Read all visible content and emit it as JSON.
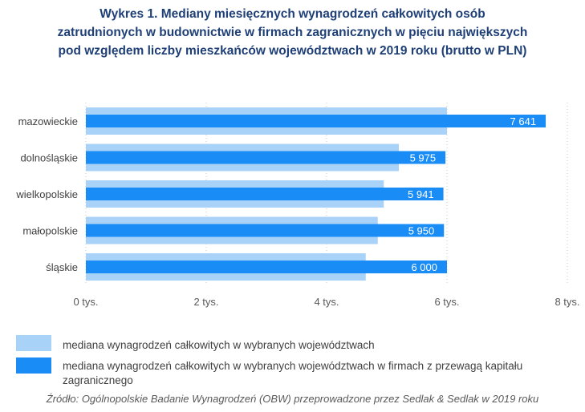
{
  "title_lines": [
    "Wykres 1. Mediany miesięcznych wynagrodzeń całkowitych osób",
    "zatrudnionych w budownictwie w firmach zagranicznych w pięciu największych",
    "pod względem liczby mieszkańców województwach w 2019 roku (brutto w PLN)"
  ],
  "legend": [
    {
      "label": "mediana wynagrodzeń całkowitych w wybranych województwach",
      "color": "#a9d2f8"
    },
    {
      "label": "mediana wynagrodzeń całkowitych w wybranych województwach w firmach z przewagą kapitału zagranicznego",
      "color": "#1a8cf6"
    }
  ],
  "source": "Źródło: Ogólnopolskie Badanie Wynagrodzeń (OBW) przeprowadzone przez Sedlak & Sedlak w 2019 roku",
  "chart_data": {
    "type": "bar",
    "orientation": "horizontal",
    "categories": [
      "mazowieckie",
      "dolnośląskie",
      "wielkopolskie",
      "małopolskie",
      "śląskie"
    ],
    "series": [
      {
        "name": "mediana wynagrodzeń całkowitych w wybranych województwach",
        "color": "#a9d2f8",
        "values": [
          6000,
          5200,
          4950,
          4850,
          4650
        ]
      },
      {
        "name": "mediana wynagrodzeń całkowitych w wybranych województwach w firmach z przewagą kapitału zagranicznego",
        "color": "#1a8cf6",
        "values": [
          7641,
          5975,
          5941,
          5950,
          6000
        ],
        "labels": [
          "7 641",
          "5 975",
          "5 941",
          "5 950",
          "6 000"
        ]
      }
    ],
    "xlim": [
      0,
      8000
    ],
    "ticks": [
      0,
      2000,
      4000,
      6000,
      8000
    ],
    "tick_labels": [
      "0 tys.",
      "2 tys.",
      "4 tys.",
      "6 tys.",
      "8 tys."
    ],
    "grid": "vertical-dotted"
  }
}
